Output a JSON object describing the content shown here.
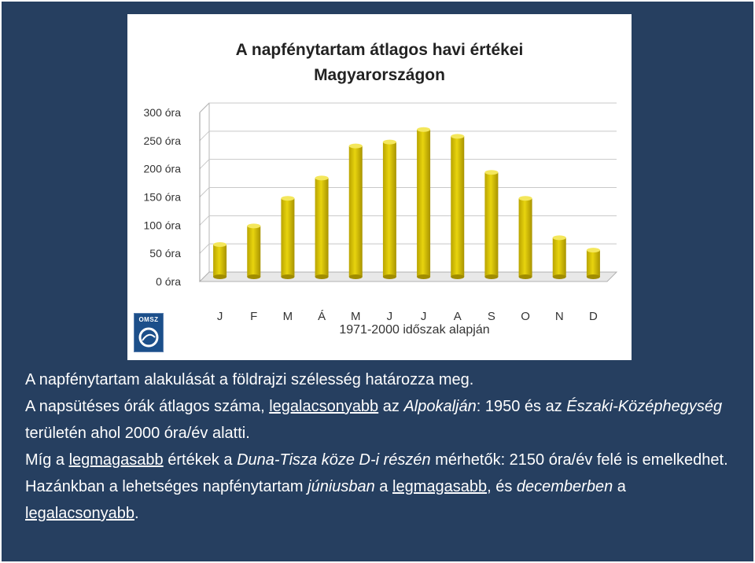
{
  "chart_data": {
    "type": "bar",
    "title": [
      "A napfénytartam átlagos havi értékei",
      "Magyarországon"
    ],
    "categories": [
      "J",
      "F",
      "M",
      "Á",
      "M",
      "J",
      "J",
      "A",
      "S",
      "O",
      "N",
      "D"
    ],
    "values": [
      60,
      93,
      142,
      178,
      235,
      242,
      264,
      252,
      188,
      142,
      72,
      50
    ],
    "ylim": [
      0,
      300
    ],
    "yticks": [
      0,
      50,
      100,
      150,
      200,
      250,
      300
    ],
    "ytick_labels": [
      "0 óra",
      "50 óra",
      "100 óra",
      "150 óra",
      "200 óra",
      "250 óra",
      "300 óra"
    ],
    "xlabel": "1971-2000 időszak alapján",
    "ylabel": "",
    "grid": true,
    "bar_color": "#e8d40e"
  },
  "logo": {
    "text": "OMSZ"
  },
  "text": {
    "p1": "A napfénytartam alakulását a földrajzi szélesség határozza meg.",
    "p2": {
      "a": "A napsütéses órák átlagos száma, ",
      "b": "legalacsonyabb",
      "c": " az ",
      "d": "Alpokalján",
      "e": ": 1950 és az ",
      "f": "Északi-Középhegység",
      "g": " területén ahol 2000 óra/év alatti."
    },
    "p3": {
      "a": "Míg a ",
      "b": "legmagasabb",
      "c": " értékek a ",
      "d": "Duna-Tisza köze D-i részén",
      "e": " mérhetők: 2150 óra/év felé is emelkedhet."
    },
    "p4": {
      "a": "Hazánkban a lehetséges napfénytartam ",
      "b": "júniusban",
      "c": " a ",
      "d": "legmagasabb",
      "e": ", és ",
      "f": "decemberben",
      "g": " a ",
      "h": "legalacsonyabb",
      "i": "."
    }
  }
}
